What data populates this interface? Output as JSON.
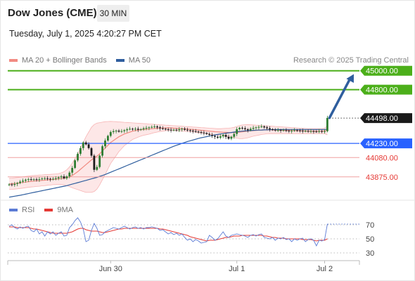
{
  "header": {
    "title": "Dow Jones (CME)",
    "timeframe": "30 MIN",
    "timestamp": "Tuesday, July 1, 2025 4:20:27 PM CET"
  },
  "legend": {
    "ma20_bb": {
      "label": "MA 20 + Bollinger Bands",
      "color": "#f28b82"
    },
    "ma50": {
      "label": "MA 50",
      "color": "#2f5e9e"
    }
  },
  "credit": "Research © 2025 Trading Central",
  "rsi_legend": {
    "rsi": {
      "label": "RSI",
      "color": "#5b7bd5"
    },
    "ma9": {
      "label": "9MA",
      "color": "#e53935"
    }
  },
  "chart_data": [
    {
      "type": "candlestick",
      "title": "",
      "ylim": [
        43650,
        45080
      ],
      "x_ticks": [
        {
          "label": "Jun 30",
          "index": 37
        },
        {
          "label": "Jul 1",
          "index": 83
        },
        {
          "label": "Jul 2",
          "index": 115
        }
      ],
      "levels": [
        {
          "label": "45000.00",
          "value": 45000,
          "kind": "resistance",
          "color": "#4caf1a"
        },
        {
          "label": "44800.00",
          "value": 44800,
          "kind": "resistance",
          "color": "#4caf1a"
        },
        {
          "label": "44498.00",
          "value": 44498,
          "kind": "last",
          "color": "#222222"
        },
        {
          "label": "44230.00",
          "value": 44230,
          "kind": "pivot",
          "color": "#2962ff"
        },
        {
          "label": "44080.00",
          "value": 44080,
          "kind": "support",
          "color": "#e53935"
        },
        {
          "label": "43875.00",
          "value": 43875,
          "kind": "support",
          "color": "#e53935"
        }
      ],
      "forecast": {
        "from_value": 44500,
        "to_value": 44965
      },
      "closes": [
        43795,
        43790,
        43800,
        43810,
        43825,
        43835,
        43845,
        43850,
        43845,
        43850,
        43845,
        43850,
        43858,
        43860,
        43855,
        43850,
        43855,
        43860,
        43870,
        43880,
        43860,
        43880,
        43920,
        43970,
        44050,
        44120,
        44180,
        44240,
        44220,
        44180,
        44100,
        43950,
        43980,
        44100,
        44200,
        44260,
        44310,
        44350,
        44360,
        44365,
        44355,
        44360,
        44370,
        44380,
        44385,
        44380,
        44385,
        44375,
        44380,
        44390,
        44395,
        44400,
        44405,
        44410,
        44400,
        44390,
        44385,
        44380,
        44375,
        44370,
        44375,
        44370,
        44380,
        44385,
        44375,
        44370,
        44365,
        44360,
        44355,
        44350,
        44345,
        44340,
        44330,
        44320,
        44310,
        44300,
        44290,
        44305,
        44320,
        44300,
        44280,
        44300,
        44330,
        44380,
        44395,
        44390,
        44380,
        44370,
        44385,
        44395,
        44400,
        44405,
        44410,
        44400,
        44390,
        44380,
        44375,
        44370,
        44372,
        44368,
        44370,
        44365,
        44360,
        44365,
        44370,
        44368,
        44365,
        44360,
        44362,
        44358,
        44360,
        44356,
        44354,
        44360,
        44358,
        44360,
        44500
      ],
      "ma20": [
        43800,
        43802,
        43805,
        43808,
        43812,
        43816,
        43820,
        43824,
        43828,
        43830,
        43833,
        43835,
        43838,
        43840,
        43843,
        43845,
        43848,
        43850,
        43853,
        43856,
        43860,
        43866,
        43876,
        43890,
        43910,
        43930,
        43955,
        43980,
        44005,
        44030,
        44055,
        44075,
        44095,
        44120,
        44150,
        44180,
        44210,
        44240,
        44260,
        44280,
        44300,
        44315,
        44330,
        44340,
        44350,
        44360,
        44365,
        44370,
        44375,
        44378,
        44380,
        44382,
        44385,
        44388,
        44390,
        44392,
        44393,
        44394,
        44395,
        44394,
        44392,
        44390,
        44388,
        44386,
        44384,
        44382,
        44380,
        44378,
        44375,
        44372,
        44369,
        44366,
        44363,
        44360,
        44357,
        44354,
        44352,
        44350,
        44348,
        44347,
        44346,
        44345,
        44346,
        44348,
        44350,
        44353,
        44356,
        44360,
        44363,
        44366,
        44368,
        44370,
        44372,
        44373,
        44374,
        44374,
        44373,
        44372,
        44371,
        44370,
        44369,
        44368,
        44367,
        44366,
        44365,
        44364,
        44363,
        44362,
        44361,
        44360,
        44360,
        44360,
        44360,
        44360,
        44360,
        44362,
        44370
      ],
      "bb_upper": [
        43860,
        43862,
        43865,
        43868,
        43872,
        43876,
        43880,
        43884,
        43888,
        43890,
        43892,
        43894,
        43896,
        43898,
        43900,
        43902,
        43904,
        43906,
        43910,
        43918,
        43930,
        43950,
        43980,
        44020,
        44070,
        44120,
        44180,
        44240,
        44300,
        44350,
        44400,
        44430,
        44445,
        44450,
        44455,
        44460,
        44462,
        44463,
        44462,
        44460,
        44458,
        44456,
        44454,
        44452,
        44450,
        44448,
        44446,
        44444,
        44442,
        44440,
        44438,
        44436,
        44434,
        44432,
        44430,
        44428,
        44426,
        44424,
        44422,
        44420,
        44418,
        44416,
        44414,
        44412,
        44410,
        44408,
        44406,
        44404,
        44402,
        44400,
        44398,
        44396,
        44394,
        44392,
        44390,
        44388,
        44386,
        44386,
        44388,
        44390,
        44392,
        44395,
        44400,
        44410,
        44420,
        44425,
        44428,
        44430,
        44428,
        44426,
        44424,
        44422,
        44420,
        44418,
        44416,
        44414,
        44412,
        44410,
        44408,
        44406,
        44404,
        44402,
        44400,
        44398,
        44396,
        44394,
        44392,
        44390,
        44388,
        44386,
        44386,
        44386,
        44386,
        44386,
        44386,
        44390,
        44420
      ],
      "bb_lower": [
        43740,
        43742,
        43745,
        43748,
        43752,
        43756,
        43760,
        43764,
        43768,
        43770,
        43774,
        43776,
        43780,
        43782,
        43786,
        43788,
        43792,
        43794,
        43796,
        43794,
        43790,
        43782,
        43772,
        43760,
        43750,
        43740,
        43730,
        43720,
        43710,
        43710,
        43710,
        43720,
        43745,
        43790,
        43845,
        43900,
        43958,
        44017,
        44058,
        44100,
        44142,
        44174,
        44206,
        44228,
        44250,
        44272,
        44284,
        44296,
        44308,
        44316,
        44322,
        44328,
        44336,
        44344,
        44350,
        44356,
        44360,
        44364,
        44368,
        44368,
        44366,
        44364,
        44362,
        44360,
        44358,
        44356,
        44354,
        44352,
        44348,
        44344,
        44340,
        44336,
        44332,
        44328,
        44324,
        44320,
        44318,
        44314,
        44308,
        44304,
        44300,
        44295,
        44292,
        44286,
        44280,
        44281,
        44284,
        44290,
        44298,
        44306,
        44312,
        44318,
        44324,
        44328,
        44332,
        44334,
        44334,
        44334,
        44334,
        44334,
        44334,
        44334,
        44334,
        44334,
        44334,
        44334,
        44334,
        44334,
        44334,
        44334,
        44334,
        44334,
        44334,
        44334,
        44334,
        44334,
        44320
      ],
      "ma50": [
        43660,
        43665,
        43670,
        43675,
        43680,
        43686,
        43692,
        43698,
        43704,
        43710,
        43716,
        43722,
        43728,
        43734,
        43740,
        43746,
        43752,
        43758,
        43764,
        43770,
        43776,
        43782,
        43790,
        43798,
        43806,
        43814,
        43822,
        43830,
        43838,
        43846,
        43854,
        43862,
        43870,
        43880,
        43890,
        43900,
        43912,
        43924,
        43936,
        43948,
        43960,
        43972,
        43984,
        43996,
        44008,
        44020,
        44032,
        44044,
        44056,
        44068,
        44080,
        44092,
        44104,
        44116,
        44128,
        44140,
        44152,
        44164,
        44176,
        44188,
        44200,
        44210,
        44220,
        44230,
        44240,
        44250,
        44258,
        44266,
        44274,
        44282,
        44290,
        44296,
        44302,
        44308,
        44314,
        44320,
        44325,
        44330,
        44334,
        44338,
        44342,
        44346,
        44350,
        44354,
        44357,
        44360,
        44362,
        44364,
        44366,
        44368,
        44370,
        44371,
        44372,
        44373,
        44374,
        44375,
        44376,
        44376,
        44377,
        44377,
        44378,
        44378,
        44378,
        44378,
        44378,
        44378,
        44378,
        44378,
        44378,
        44378,
        44378,
        44378,
        44378,
        44378,
        44378,
        44378,
        44380
      ]
    },
    {
      "type": "line",
      "title": "",
      "ylim": [
        20,
        90
      ],
      "y_ticks": [
        70,
        50,
        30
      ],
      "forecast": {
        "from_value": 71,
        "to_value": 71
      },
      "series": [
        {
          "name": "RSI",
          "color": "#5b7bd5",
          "values": [
            68,
            70,
            66,
            64,
            67,
            65,
            67,
            68,
            62,
            60,
            64,
            57,
            60,
            54,
            60,
            57,
            60,
            55,
            58,
            60,
            54,
            55,
            66,
            70,
            76,
            80,
            74,
            64,
            46,
            48,
            62,
            72,
            65,
            55,
            56,
            60,
            62,
            64,
            66,
            65,
            64,
            66,
            68,
            66,
            64,
            66,
            67,
            65,
            66,
            64,
            66,
            66,
            67,
            66,
            65,
            62,
            63,
            60,
            57,
            59,
            56,
            58,
            55,
            57,
            52,
            48,
            50,
            46,
            49,
            47,
            44,
            45,
            46,
            55,
            52,
            48,
            50,
            55,
            60,
            54,
            52,
            55,
            56,
            57,
            56,
            55,
            54,
            52,
            55,
            56,
            54,
            56,
            57,
            52,
            51,
            50,
            52,
            48,
            51,
            50,
            52,
            49,
            50,
            46,
            50,
            48,
            50,
            51,
            46,
            49,
            50,
            48,
            40,
            48,
            47,
            49,
            71
          ]
        },
        {
          "name": "9MA",
          "color": "#e53935",
          "values": [
            67,
            67,
            67,
            66,
            66,
            66,
            66,
            66,
            65,
            64,
            64,
            63,
            62,
            61,
            60,
            59,
            58,
            58,
            58,
            58,
            58,
            58,
            59,
            60,
            62,
            64,
            65,
            65,
            63,
            62,
            61,
            61,
            61,
            60,
            59,
            59,
            60,
            61,
            62,
            63,
            64,
            64,
            65,
            65,
            65,
            65,
            65,
            65,
            65,
            65,
            65,
            65,
            65,
            65,
            65,
            64,
            64,
            63,
            62,
            61,
            60,
            59,
            58,
            57,
            56,
            55,
            53,
            52,
            51,
            50,
            49,
            48,
            47,
            48,
            48,
            48,
            49,
            50,
            51,
            52,
            52,
            53,
            54,
            54,
            54,
            55,
            55,
            55,
            55,
            55,
            55,
            55,
            55,
            54,
            54,
            53,
            52,
            52,
            51,
            51,
            51,
            50,
            50,
            50,
            50,
            50,
            50,
            49,
            49,
            49,
            49,
            48,
            47,
            48,
            48,
            48,
            50
          ]
        }
      ]
    }
  ]
}
